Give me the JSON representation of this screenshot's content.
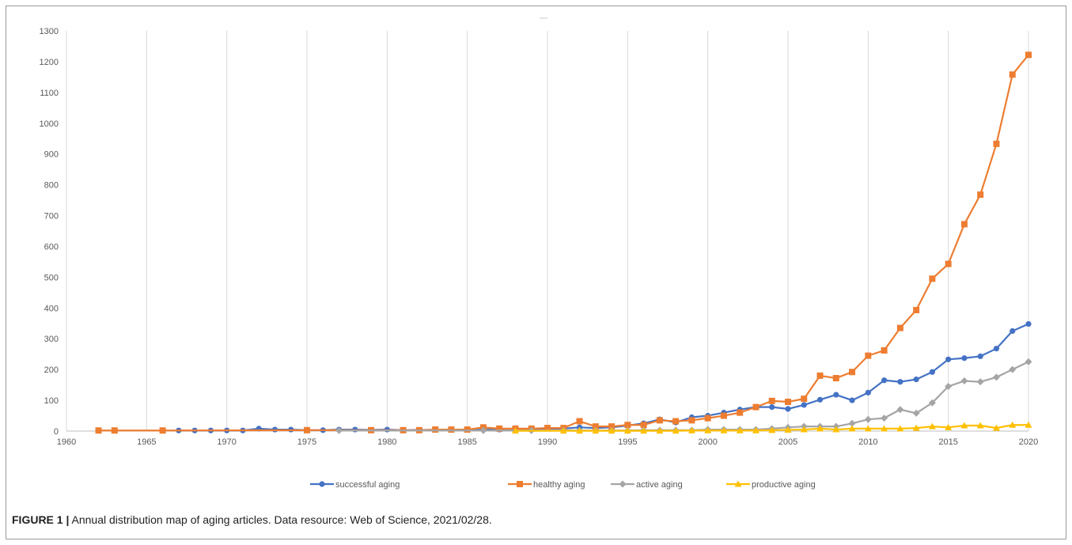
{
  "chart_data": {
    "type": "line",
    "title": "",
    "xlabel": "",
    "ylabel": "",
    "xlim": [
      1960,
      2020
    ],
    "ylim": [
      0,
      1300
    ],
    "xticks": [
      1960,
      1965,
      1970,
      1975,
      1980,
      1985,
      1990,
      1995,
      2000,
      2005,
      2010,
      2015,
      2020
    ],
    "yticks": [
      0,
      100,
      200,
      300,
      400,
      500,
      600,
      700,
      800,
      900,
      1000,
      1100,
      1200,
      1300
    ],
    "grid": "vertical",
    "legend_position": "bottom",
    "series": [
      {
        "name": "successful aging",
        "color": "#4472c4",
        "marker": "circle",
        "points": [
          [
            1967,
            2
          ],
          [
            1968,
            2
          ],
          [
            1969,
            2
          ],
          [
            1970,
            2
          ],
          [
            1971,
            2
          ],
          [
            1972,
            8
          ],
          [
            1973,
            5
          ],
          [
            1974,
            5
          ],
          [
            1975,
            3
          ],
          [
            1976,
            3
          ],
          [
            1977,
            5
          ],
          [
            1978,
            5
          ],
          [
            1979,
            4
          ],
          [
            1980,
            5
          ],
          [
            1981,
            3
          ],
          [
            1982,
            4
          ],
          [
            1983,
            4
          ],
          [
            1984,
            4
          ],
          [
            1985,
            4
          ],
          [
            1986,
            5
          ],
          [
            1987,
            5
          ],
          [
            1988,
            5
          ],
          [
            1989,
            6
          ],
          [
            1990,
            8
          ],
          [
            1991,
            8
          ],
          [
            1992,
            12
          ],
          [
            1993,
            10
          ],
          [
            1994,
            12
          ],
          [
            1995,
            18
          ],
          [
            1996,
            25
          ],
          [
            1997,
            38
          ],
          [
            1998,
            28
          ],
          [
            1999,
            45
          ],
          [
            2000,
            50
          ],
          [
            2001,
            60
          ],
          [
            2002,
            70
          ],
          [
            2003,
            78
          ],
          [
            2004,
            78
          ],
          [
            2005,
            72
          ],
          [
            2006,
            85
          ],
          [
            2007,
            102
          ],
          [
            2008,
            118
          ],
          [
            2009,
            100
          ],
          [
            2010,
            125
          ],
          [
            2011,
            165
          ],
          [
            2012,
            160
          ],
          [
            2013,
            168
          ],
          [
            2014,
            192
          ],
          [
            2015,
            233
          ],
          [
            2016,
            237
          ],
          [
            2017,
            243
          ],
          [
            2018,
            268
          ],
          [
            2019,
            325
          ],
          [
            2020,
            348
          ]
        ]
      },
      {
        "name": "healthy aging",
        "color": "#ed7d31",
        "marker": "square",
        "points": [
          [
            1962,
            2
          ],
          [
            1963,
            2
          ],
          [
            1966,
            2
          ],
          [
            1975,
            3
          ],
          [
            1979,
            3
          ],
          [
            1981,
            3
          ],
          [
            1982,
            3
          ],
          [
            1983,
            5
          ],
          [
            1984,
            5
          ],
          [
            1985,
            5
          ],
          [
            1986,
            12
          ],
          [
            1987,
            8
          ],
          [
            1988,
            8
          ],
          [
            1989,
            8
          ],
          [
            1990,
            10
          ],
          [
            1991,
            10
          ],
          [
            1992,
            32
          ],
          [
            1993,
            15
          ],
          [
            1994,
            15
          ],
          [
            1995,
            20
          ],
          [
            1996,
            20
          ],
          [
            1997,
            35
          ],
          [
            1998,
            32
          ],
          [
            1999,
            35
          ],
          [
            2000,
            42
          ],
          [
            2001,
            50
          ],
          [
            2002,
            60
          ],
          [
            2003,
            78
          ],
          [
            2004,
            98
          ],
          [
            2005,
            95
          ],
          [
            2006,
            105
          ],
          [
            2007,
            180
          ],
          [
            2008,
            172
          ],
          [
            2009,
            192
          ],
          [
            2010,
            245
          ],
          [
            2011,
            262
          ],
          [
            2012,
            335
          ],
          [
            2013,
            393
          ],
          [
            2014,
            495
          ],
          [
            2015,
            543
          ],
          [
            2016,
            672
          ],
          [
            2017,
            768
          ],
          [
            2018,
            933
          ],
          [
            2019,
            1158
          ],
          [
            2020,
            1222
          ]
        ]
      },
      {
        "name": "active aging",
        "color": "#a5a5a5",
        "marker": "diamond",
        "points": [
          [
            1977,
            2
          ],
          [
            1986,
            2
          ],
          [
            1989,
            2
          ],
          [
            1991,
            2
          ],
          [
            1992,
            2
          ],
          [
            1993,
            2
          ],
          [
            1994,
            2
          ],
          [
            1995,
            2
          ],
          [
            1996,
            3
          ],
          [
            1997,
            3
          ],
          [
            1998,
            3
          ],
          [
            1999,
            3
          ],
          [
            2000,
            5
          ],
          [
            2001,
            5
          ],
          [
            2002,
            5
          ],
          [
            2003,
            5
          ],
          [
            2004,
            8
          ],
          [
            2005,
            12
          ],
          [
            2006,
            15
          ],
          [
            2007,
            15
          ],
          [
            2008,
            15
          ],
          [
            2009,
            25
          ],
          [
            2010,
            38
          ],
          [
            2011,
            42
          ],
          [
            2012,
            70
          ],
          [
            2013,
            58
          ],
          [
            2014,
            92
          ],
          [
            2015,
            145
          ],
          [
            2016,
            163
          ],
          [
            2017,
            160
          ],
          [
            2018,
            175
          ],
          [
            2019,
            200
          ],
          [
            2020,
            225
          ]
        ]
      },
      {
        "name": "productive aging",
        "color": "#ffc000",
        "marker": "triangle",
        "points": [
          [
            1988,
            1
          ],
          [
            1991,
            1
          ],
          [
            1992,
            1
          ],
          [
            1993,
            1
          ],
          [
            1994,
            1
          ],
          [
            1995,
            1
          ],
          [
            1996,
            1
          ],
          [
            1997,
            1
          ],
          [
            1998,
            1
          ],
          [
            1999,
            2
          ],
          [
            2000,
            2
          ],
          [
            2001,
            2
          ],
          [
            2002,
            2
          ],
          [
            2003,
            2
          ],
          [
            2004,
            3
          ],
          [
            2005,
            4
          ],
          [
            2006,
            5
          ],
          [
            2007,
            8
          ],
          [
            2008,
            5
          ],
          [
            2009,
            8
          ],
          [
            2010,
            8
          ],
          [
            2011,
            8
          ],
          [
            2012,
            8
          ],
          [
            2013,
            10
          ],
          [
            2014,
            15
          ],
          [
            2015,
            12
          ],
          [
            2016,
            18
          ],
          [
            2017,
            18
          ],
          [
            2018,
            10
          ],
          [
            2019,
            20
          ],
          [
            2020,
            20
          ]
        ]
      }
    ]
  },
  "caption": {
    "lead": "FIGURE 1 |",
    "text": " Annual distribution map of aging articles. Data resource: Web of Science, 2021/02/28."
  }
}
